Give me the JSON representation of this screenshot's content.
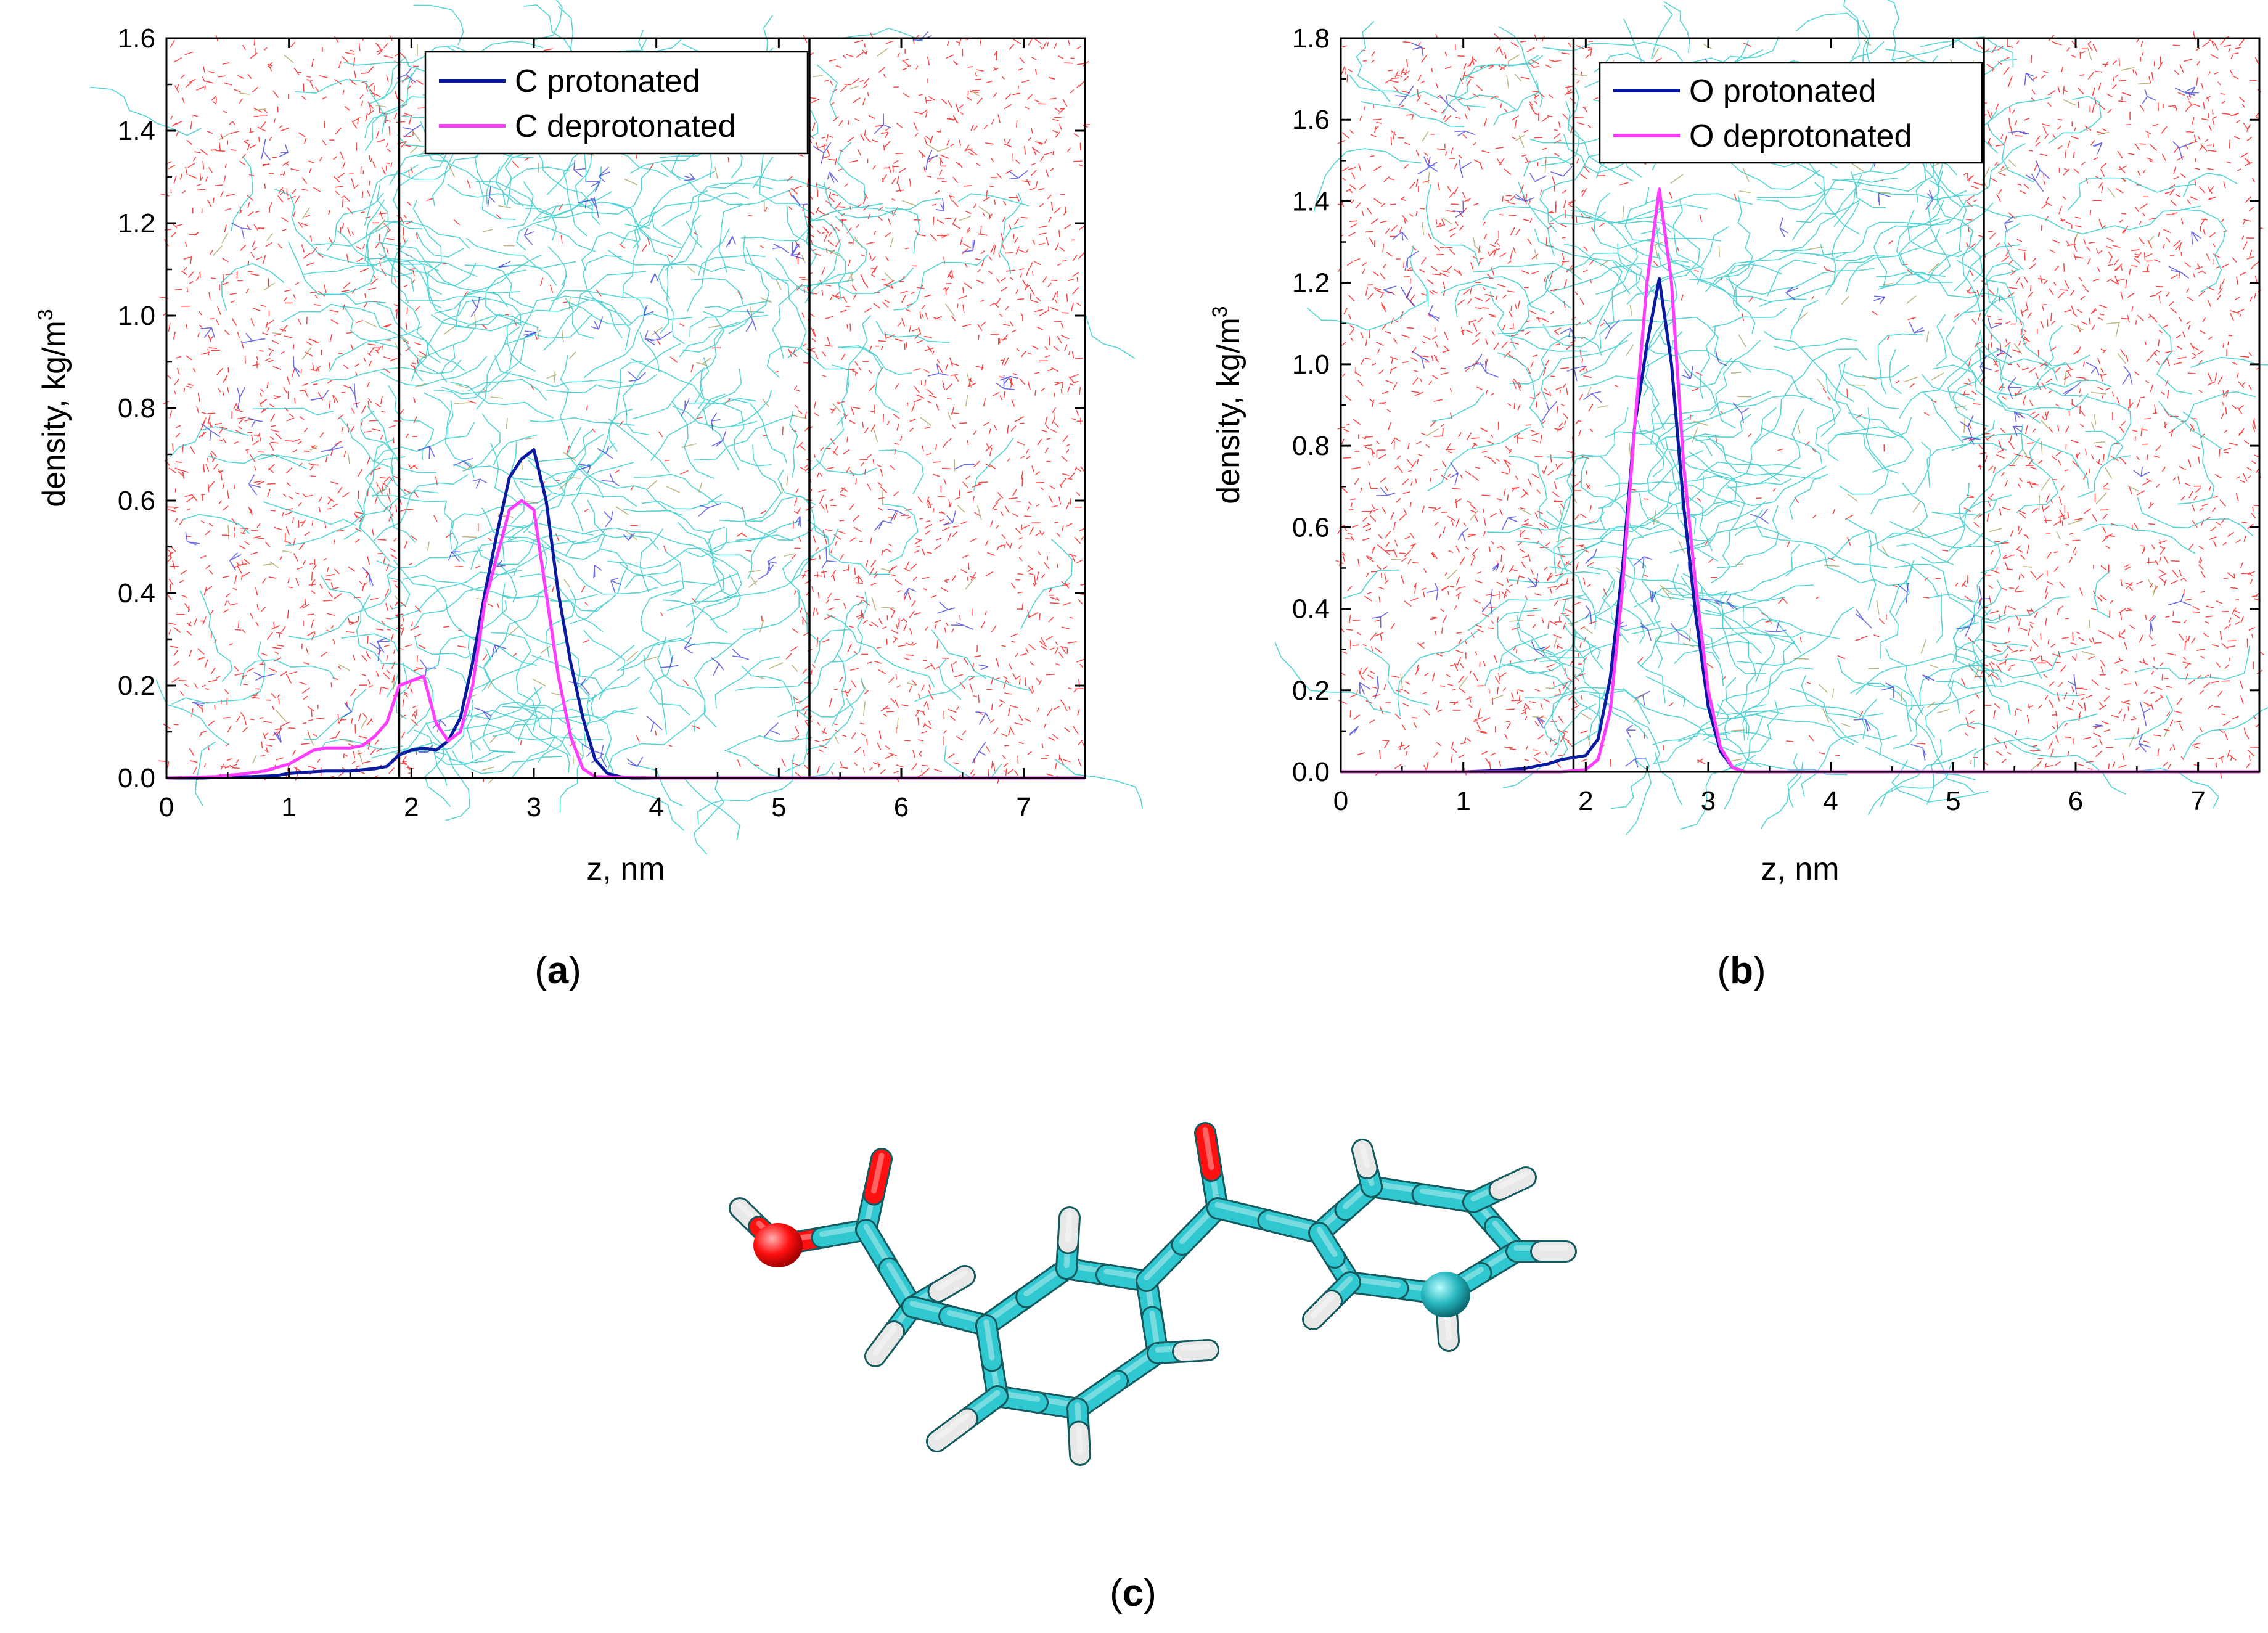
{
  "colors": {
    "protonated": "#0a1a9e",
    "deprotonated": "#ff3cff",
    "water": "#ff2020",
    "lipid": "#28c8c8",
    "boundary": "#000000",
    "carbon": "#30c8d0",
    "oxygen": "#ff1010",
    "hydrogen": "#ffffff"
  },
  "panels": {
    "a": {
      "caption_letter": "a"
    },
    "b": {
      "caption_letter": "b"
    },
    "c": {
      "caption_letter": "c"
    }
  },
  "molecule": {
    "icon": "ketoprofen-stick-model",
    "atoms": [
      "C",
      "O",
      "H"
    ]
  },
  "chart_data": [
    {
      "type": "line",
      "panel": "a",
      "xlabel": "z, nm",
      "ylabel": "density, kg/m",
      "ylabel_superscript": "3",
      "xlim": [
        0,
        7.5
      ],
      "ylim": [
        0,
        1.6
      ],
      "xticks": [
        0,
        1,
        2,
        3,
        4,
        5,
        6,
        7
      ],
      "yticks": [
        "0.0",
        "0.2",
        "0.4",
        "0.6",
        "0.8",
        "1.0",
        "1.2",
        "1.4",
        "1.6"
      ],
      "yticks_values": [
        0,
        0.2,
        0.4,
        0.6,
        0.8,
        1.0,
        1.2,
        1.4,
        1.6
      ],
      "membrane_boundaries": [
        1.9,
        5.25
      ],
      "legend_position": "top-center",
      "series": [
        {
          "name": "C protonated",
          "color": "#0a1a9e",
          "x": [
            0,
            0.3,
            0.5,
            0.7,
            0.9,
            1.0,
            1.1,
            1.3,
            1.5,
            1.7,
            1.8,
            1.9,
            2.0,
            2.1,
            2.2,
            2.3,
            2.4,
            2.5,
            2.6,
            2.7,
            2.8,
            2.9,
            3.0,
            3.1,
            3.2,
            3.3,
            3.4,
            3.5,
            3.6,
            3.7,
            3.8,
            4.0,
            5.0,
            6.0,
            7.5
          ],
          "values": [
            0,
            0,
            0.002,
            0.003,
            0.005,
            0.01,
            0.012,
            0.015,
            0.015,
            0.02,
            0.025,
            0.05,
            0.06,
            0.065,
            0.06,
            0.08,
            0.13,
            0.25,
            0.4,
            0.53,
            0.65,
            0.69,
            0.71,
            0.6,
            0.4,
            0.25,
            0.13,
            0.04,
            0.01,
            0.003,
            0,
            0,
            0,
            0,
            0
          ]
        },
        {
          "name": "C deprotonated",
          "color": "#ff3cff",
          "x": [
            0,
            0.4,
            0.6,
            0.8,
            1.0,
            1.1,
            1.2,
            1.3,
            1.5,
            1.6,
            1.7,
            1.8,
            1.9,
            2.0,
            2.1,
            2.2,
            2.3,
            2.4,
            2.5,
            2.6,
            2.7,
            2.8,
            2.9,
            3.0,
            3.1,
            3.2,
            3.3,
            3.4,
            3.5,
            4.0,
            5.0,
            6.0,
            7.5
          ],
          "values": [
            0,
            0.003,
            0.008,
            0.015,
            0.03,
            0.045,
            0.06,
            0.065,
            0.065,
            0.07,
            0.09,
            0.12,
            0.2,
            0.21,
            0.22,
            0.12,
            0.08,
            0.1,
            0.2,
            0.38,
            0.48,
            0.58,
            0.6,
            0.58,
            0.4,
            0.22,
            0.09,
            0.02,
            0.003,
            0,
            0,
            0,
            0
          ]
        }
      ]
    },
    {
      "type": "line",
      "panel": "b",
      "xlabel": "z, nm",
      "ylabel": "density, kg/m",
      "ylabel_superscript": "3",
      "xlim": [
        0,
        7.5
      ],
      "ylim": [
        0,
        1.8
      ],
      "xticks": [
        0,
        1,
        2,
        3,
        4,
        5,
        6,
        7
      ],
      "yticks": [
        "0.0",
        "0.2",
        "0.4",
        "0.6",
        "0.8",
        "1.0",
        "1.2",
        "1.4",
        "1.6",
        "1.8"
      ],
      "yticks_values": [
        0,
        0.2,
        0.4,
        0.6,
        0.8,
        1.0,
        1.2,
        1.4,
        1.6,
        1.8
      ],
      "membrane_boundaries": [
        1.9,
        5.25
      ],
      "legend_position": "top-center",
      "series": [
        {
          "name": "O protonated",
          "color": "#0a1a9e",
          "x": [
            0,
            1.0,
            1.3,
            1.5,
            1.7,
            1.8,
            1.9,
            2.0,
            2.1,
            2.2,
            2.3,
            2.4,
            2.5,
            2.6,
            2.7,
            2.8,
            2.9,
            3.0,
            3.1,
            3.2,
            3.3,
            4.0,
            5.0,
            6.0,
            7.5
          ],
          "values": [
            0,
            0,
            0.003,
            0.008,
            0.02,
            0.03,
            0.035,
            0.04,
            0.08,
            0.23,
            0.5,
            0.85,
            1.05,
            1.21,
            1.0,
            0.65,
            0.38,
            0.16,
            0.05,
            0.01,
            0,
            0,
            0,
            0,
            0
          ]
        },
        {
          "name": "O deprotonated",
          "color": "#ff3cff",
          "x": [
            0,
            1.8,
            2.0,
            2.1,
            2.2,
            2.3,
            2.4,
            2.5,
            2.6,
            2.7,
            2.8,
            2.9,
            3.0,
            3.1,
            3.2,
            3.3,
            4.0,
            5.0,
            6.0,
            7.5
          ],
          "values": [
            0,
            0,
            0.005,
            0.03,
            0.15,
            0.45,
            0.85,
            1.2,
            1.43,
            1.2,
            0.75,
            0.45,
            0.2,
            0.06,
            0.01,
            0,
            0,
            0,
            0,
            0
          ]
        }
      ]
    }
  ]
}
